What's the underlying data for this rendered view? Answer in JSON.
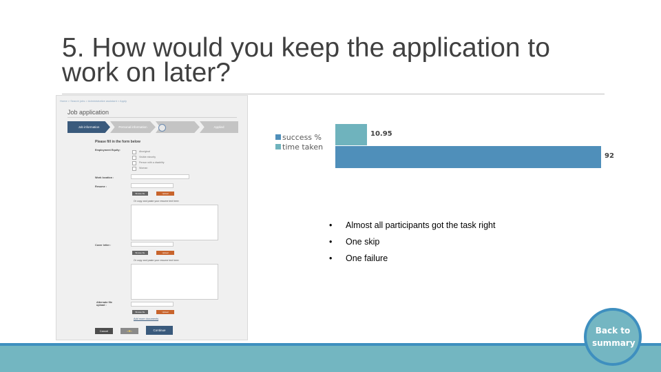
{
  "slide": {
    "title": "5. How would you keep the application to work on later?"
  },
  "form_screenshot": {
    "breadcrumb": "Home > Search jobs > Administrative assistant > Apply",
    "page_title": "Job application",
    "steps": [
      "Job information",
      "Personal information",
      "",
      "Applied"
    ],
    "fill_in_heading": "Please fill in the form below",
    "employment_equity_label": "Employment Equity:",
    "equity_options": [
      "Aboriginal",
      "Visible minority",
      "Person with a disability",
      "Woman"
    ],
    "work_location_label": "Work location :",
    "resume_label": "Resume :",
    "cover_letter_label": "Cover letter :",
    "alternate_file_label": "Alternate file upload :",
    "browse_label": "Browse file",
    "upload_label": "Upload",
    "paste_label": "Or copy and paste your resume text here:",
    "add_more_label": "Add more documents",
    "cancel_label": "Cancel",
    "continue_label": "Continue"
  },
  "chart_data": {
    "type": "bar",
    "orientation": "horizontal",
    "categories": [
      ""
    ],
    "series": [
      {
        "name": "success %",
        "values": [
          92
        ],
        "color": "#4f8fba"
      },
      {
        "name": "time taken",
        "values": [
          10.95
        ],
        "color": "#6fb3bd"
      }
    ],
    "xlim": [
      0,
      92
    ],
    "legend_position": "left",
    "grid": false
  },
  "bullets": [
    "Almost all participants got the task right",
    "One skip",
    "One failure"
  ],
  "back_button": {
    "line1": "Back to",
    "line2": "summary"
  },
  "colors": {
    "title_text": "#404040",
    "accent_blue": "#3e8fbf",
    "footer_teal": "#73b6c1"
  }
}
